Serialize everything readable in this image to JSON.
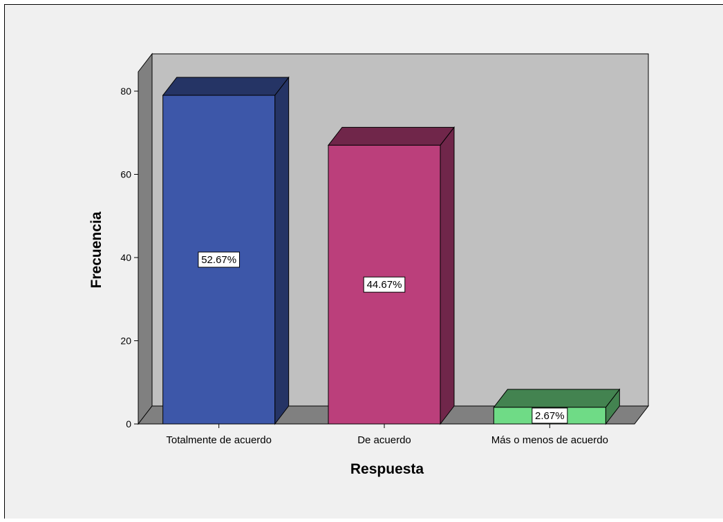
{
  "chart_data": {
    "type": "bar",
    "xlabel": "Respuesta",
    "ylabel": "Frecuencia",
    "categories": [
      "Totalmente de acuerdo",
      "De acuerdo",
      "Más o menos de acuerdo"
    ],
    "values": [
      79,
      67,
      4
    ],
    "data_labels": [
      "52.67%",
      "44.67%",
      "2.67%"
    ],
    "ylim": [
      0,
      80
    ],
    "yticks": [
      "0",
      "20",
      "40",
      "60",
      "80"
    ],
    "bar_colors": [
      "#3d57a9",
      "#bb3f7b",
      "#6fdb86"
    ],
    "grid": false,
    "style": "3d",
    "background_color": "#c0c0c0",
    "outer_background_color": "#f0f0f0"
  }
}
